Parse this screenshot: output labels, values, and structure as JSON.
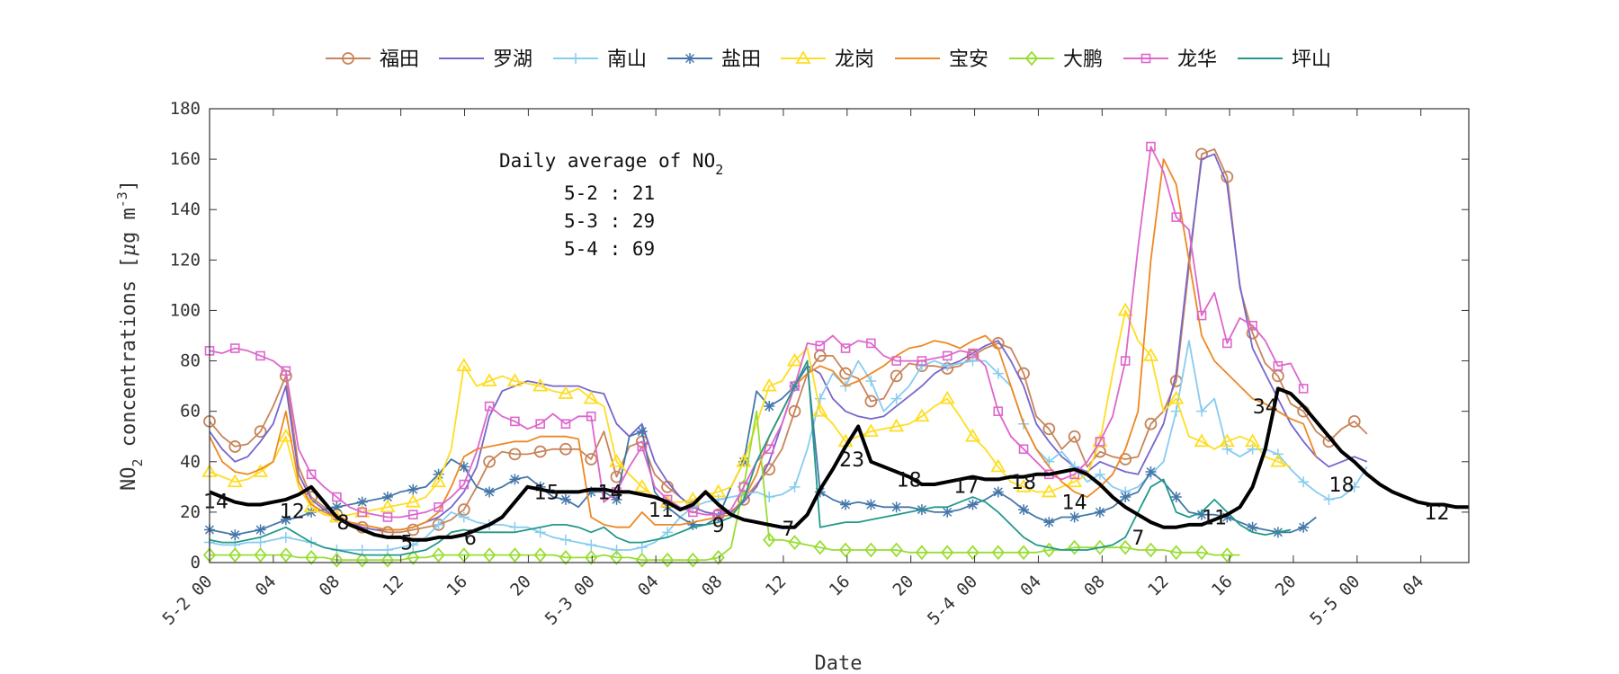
{
  "chart_data": {
    "type": "line",
    "xlabel": "Date",
    "ylabel_parts": [
      "NO",
      "2",
      " concentrations [",
      "μ",
      "g m",
      "-3",
      "]"
    ],
    "ylim": [
      0,
      180
    ],
    "yticks": [
      0,
      20,
      40,
      60,
      80,
      100,
      120,
      140,
      160,
      180
    ],
    "xlim": [
      0,
      71
    ],
    "xticks": [
      {
        "x": 0,
        "label": "5-2 00"
      },
      {
        "x": 4,
        "label": "04"
      },
      {
        "x": 8,
        "label": "08"
      },
      {
        "x": 12,
        "label": "12"
      },
      {
        "x": 16,
        "label": "16"
      },
      {
        "x": 20,
        "label": "20"
      },
      {
        "x": 24,
        "label": "5-3 00"
      },
      {
        "x": 28,
        "label": "04"
      },
      {
        "x": 32,
        "label": "08"
      },
      {
        "x": 36,
        "label": "12"
      },
      {
        "x": 40,
        "label": "16"
      },
      {
        "x": 44,
        "label": "20"
      },
      {
        "x": 48,
        "label": "5-4 00"
      },
      {
        "x": 52,
        "label": "04"
      },
      {
        "x": 56,
        "label": "08"
      },
      {
        "x": 60,
        "label": "12"
      },
      {
        "x": 64,
        "label": "16"
      },
      {
        "x": 68,
        "label": "20"
      },
      {
        "x": 72,
        "label": "5-5 00"
      },
      {
        "x": 76,
        "label": "04"
      }
    ],
    "grid": false,
    "legend_position": "top",
    "annotation": {
      "title_main": "Daily average of NO",
      "title_sub": "2",
      "lines": [
        "5-2 : 21",
        "5-3 : 29",
        "5-4 : 69"
      ]
    },
    "average": {
      "name": "average",
      "color": "#000000",
      "values": [
        28,
        26,
        24,
        23,
        23,
        24,
        25,
        27,
        30,
        24,
        18,
        15,
        13,
        11,
        10,
        10,
        9,
        9,
        10,
        10,
        11,
        13,
        15,
        18,
        24,
        30,
        29,
        28,
        28,
        28,
        29,
        29,
        28,
        28,
        27,
        26,
        24,
        21,
        23,
        28,
        23,
        19,
        17,
        16,
        15,
        14,
        14,
        19,
        29,
        37,
        46,
        54,
        40,
        38,
        36,
        34,
        31,
        31,
        32,
        33,
        34,
        33,
        33,
        34,
        34,
        35,
        35,
        36,
        37,
        35,
        31,
        26,
        22,
        19,
        16,
        14,
        14,
        15,
        15,
        17,
        19,
        22,
        30,
        45,
        69,
        67,
        62,
        56,
        50,
        44,
        40,
        35,
        31,
        28,
        26,
        24,
        23,
        23,
        22,
        22
      ]
    },
    "average_labels": [
      {
        "x": 0.5,
        "y": 24.5,
        "label": "14"
      },
      {
        "x": 6.5,
        "y": 20.5,
        "label": "12"
      },
      {
        "x": 10.5,
        "y": 16,
        "label": "8"
      },
      {
        "x": 15.5,
        "y": 8,
        "label": "5"
      },
      {
        "x": 20.5,
        "y": 10,
        "label": "6"
      },
      {
        "x": 26.5,
        "y": 28,
        "label": "15"
      },
      {
        "x": 31.5,
        "y": 28,
        "label": "14"
      },
      {
        "x": 35.5,
        "y": 21,
        "label": "11"
      },
      {
        "x": 40,
        "y": 15,
        "label": "9"
      },
      {
        "x": 45.5,
        "y": 13.5,
        "label": "7"
      },
      {
        "x": 50.5,
        "y": 41,
        "label": "23"
      },
      {
        "x": 55,
        "y": 33,
        "label": "18"
      },
      {
        "x": 59.5,
        "y": 30.5,
        "label": "17"
      },
      {
        "x": 64,
        "y": 32,
        "label": "18"
      },
      {
        "x": 68,
        "y": 24,
        "label": "14"
      },
      {
        "x": 73,
        "y": 10,
        "label": "7"
      },
      {
        "x": 79,
        "y": 18,
        "label": "11"
      },
      {
        "x": 83,
        "y": 62,
        "label": "34"
      },
      {
        "x": 89,
        "y": 31,
        "label": "18"
      },
      {
        "x": 96.5,
        "y": 20,
        "label": "12"
      }
    ],
    "series": [
      {
        "name": "福田",
        "color": "#c8845a",
        "marker": "circle",
        "values": [
          56,
          50,
          46,
          47,
          52,
          62,
          74,
          38,
          26,
          22,
          19,
          16,
          14,
          13,
          12,
          12,
          13,
          14,
          15,
          17,
          21,
          30,
          40,
          44,
          43,
          43,
          44,
          45,
          45,
          45,
          41,
          52,
          34,
          46,
          48,
          35,
          30,
          26,
          22,
          20,
          19,
          20,
          25,
          31,
          37,
          45,
          60,
          75,
          82,
          82,
          75,
          73,
          64,
          65,
          74,
          79,
          78,
          78,
          77,
          78,
          82,
          85,
          87,
          85,
          75,
          58,
          53,
          45,
          50,
          38,
          44,
          42,
          41,
          42,
          55,
          60,
          72,
          117,
          162,
          164,
          153,
          109,
          91,
          79,
          74,
          63,
          60,
          52,
          48,
          53,
          56,
          51
        ]
      },
      {
        "name": "罗湖",
        "color": "#7766cc",
        "marker": "none",
        "values": [
          52,
          45,
          40,
          42,
          48,
          55,
          70,
          35,
          25,
          21,
          18,
          16,
          14,
          13,
          13,
          13,
          14,
          16,
          18,
          22,
          28,
          38,
          58,
          68,
          70,
          72,
          71,
          70,
          70,
          70,
          68,
          67,
          55,
          50,
          55,
          40,
          32,
          26,
          22,
          20,
          19,
          20,
          24,
          30,
          40,
          55,
          70,
          78,
          75,
          65,
          60,
          58,
          57,
          58,
          62,
          66,
          70,
          75,
          78,
          80,
          83,
          86,
          88,
          80,
          70,
          55,
          48,
          42,
          38,
          36,
          40,
          38,
          36,
          35,
          45,
          55,
          75,
          120,
          160,
          162,
          150,
          110,
          85,
          75,
          65,
          55,
          48,
          42,
          38,
          40,
          42,
          40
        ]
      },
      {
        "name": "南山",
        "color": "#88ccee",
        "marker": "plus",
        "values": [
          8,
          7,
          7,
          8,
          8,
          9,
          10,
          9,
          8,
          6,
          5,
          5,
          5,
          5,
          5,
          6,
          7,
          10,
          15,
          20,
          18,
          16,
          15,
          15,
          14,
          14,
          12,
          10,
          9,
          8,
          7,
          6,
          5,
          5,
          6,
          8,
          12,
          18,
          22,
          24,
          25,
          26,
          27,
          28,
          26,
          27,
          30,
          45,
          65,
          75,
          70,
          80,
          72,
          60,
          65,
          70,
          78,
          80,
          78,
          79,
          80,
          80,
          75,
          70,
          55,
          45,
          40,
          44,
          38,
          32,
          35,
          30,
          28,
          30,
          35,
          40,
          60,
          88,
          60,
          65,
          45,
          42,
          45,
          45,
          43,
          37,
          32,
          28,
          25,
          26,
          30,
          38
        ]
      },
      {
        "name": "盐田",
        "color": "#4477aa",
        "marker": "asterisk",
        "values": [
          13,
          12,
          11,
          12,
          13,
          15,
          17,
          18,
          20,
          21,
          22,
          23,
          24,
          25,
          26,
          28,
          29,
          30,
          35,
          41,
          38,
          30,
          28,
          30,
          33,
          34,
          30,
          26,
          25,
          22,
          28,
          28,
          25,
          50,
          52,
          28,
          22,
          18,
          15,
          15,
          18,
          30,
          40,
          68,
          62,
          65,
          70,
          78,
          28,
          25,
          23,
          24,
          23,
          22,
          22,
          22,
          21,
          20,
          20,
          21,
          23,
          25,
          28,
          25,
          21,
          18,
          16,
          18,
          18,
          19,
          20,
          22,
          26,
          28,
          36,
          32,
          26,
          20,
          19,
          19,
          18,
          16,
          14,
          13,
          12,
          12,
          14,
          18
        ]
      },
      {
        "name": "龙岗",
        "color": "#ffdd22",
        "marker": "triangle",
        "values": [
          36,
          34,
          32,
          33,
          36,
          40,
          50,
          30,
          22,
          19,
          18,
          19,
          20,
          21,
          22,
          23,
          24,
          26,
          32,
          45,
          78,
          70,
          72,
          74,
          72,
          71,
          70,
          68,
          67,
          69,
          65,
          62,
          40,
          35,
          30,
          26,
          24,
          24,
          25,
          27,
          28,
          30,
          40,
          55,
          70,
          72,
          80,
          85,
          60,
          55,
          48,
          50,
          52,
          53,
          54,
          55,
          58,
          62,
          65,
          58,
          50,
          45,
          38,
          32,
          30,
          28,
          28,
          30,
          32,
          35,
          48,
          75,
          100,
          88,
          82,
          60,
          65,
          50,
          48,
          45,
          48,
          50,
          48,
          42,
          40,
          38
        ]
      },
      {
        "name": "宝安",
        "color": "#ee8822",
        "marker": "none",
        "values": [
          50,
          40,
          36,
          35,
          37,
          40,
          60,
          32,
          23,
          20,
          18,
          16,
          15,
          14,
          13,
          13,
          14,
          16,
          20,
          30,
          42,
          45,
          46,
          47,
          48,
          48,
          50,
          50,
          50,
          49,
          18,
          15,
          14,
          14,
          20,
          15,
          15,
          15,
          16,
          17,
          18,
          19,
          25,
          35,
          50,
          60,
          70,
          75,
          78,
          76,
          70,
          72,
          75,
          78,
          82,
          85,
          86,
          88,
          87,
          85,
          88,
          90,
          85,
          70,
          55,
          45,
          38,
          32,
          28,
          26,
          30,
          35,
          45,
          60,
          120,
          160,
          150,
          120,
          90,
          80,
          75,
          70,
          65,
          63,
          60,
          57,
          55,
          42
        ]
      },
      {
        "name": "大鹏",
        "color": "#99dd33",
        "marker": "diamond",
        "values": [
          3,
          3,
          3,
          3,
          3,
          3,
          3,
          2,
          2,
          2,
          1,
          1,
          1,
          1,
          1,
          1,
          2,
          2,
          3,
          3,
          3,
          3,
          3,
          3,
          3,
          3,
          3,
          3,
          2,
          2,
          2,
          3,
          2,
          2,
          1,
          1,
          1,
          1,
          1,
          1,
          2,
          6,
          30,
          60,
          9,
          9,
          8,
          7,
          6,
          5,
          5,
          5,
          5,
          5,
          5,
          4,
          4,
          4,
          4,
          4,
          4,
          4,
          4,
          4,
          4,
          4,
          5,
          5,
          6,
          6,
          6,
          6,
          6,
          5,
          5,
          5,
          4,
          4,
          4,
          3,
          3,
          3
        ]
      },
      {
        "name": "龙华",
        "color": "#dd66cc",
        "marker": "square",
        "values": [
          84,
          83,
          85,
          84,
          82,
          80,
          76,
          45,
          35,
          30,
          26,
          22,
          20,
          19,
          18,
          18,
          19,
          20,
          22,
          26,
          31,
          44,
          62,
          58,
          56,
          53,
          55,
          59,
          55,
          58,
          58,
          24,
          28,
          38,
          46,
          30,
          25,
          22,
          20,
          19,
          19,
          21,
          30,
          40,
          45,
          55,
          70,
          87,
          86,
          90,
          85,
          88,
          87,
          82,
          80,
          80,
          80,
          81,
          82,
          84,
          83,
          78,
          60,
          50,
          45,
          40,
          35,
          33,
          35,
          40,
          48,
          58,
          80,
          125,
          165,
          155,
          137,
          132,
          98,
          107,
          87,
          97,
          94,
          88,
          78,
          79,
          69
        ]
      },
      {
        "name": "坪山",
        "color": "#229988",
        "marker": "none",
        "values": [
          9,
          8,
          8,
          9,
          10,
          12,
          14,
          11,
          8,
          6,
          5,
          4,
          3,
          3,
          3,
          3,
          4,
          5,
          8,
          12,
          13,
          12,
          12,
          12,
          12,
          13,
          14,
          15,
          15,
          14,
          12,
          14,
          10,
          8,
          8,
          9,
          10,
          12,
          14,
          15,
          16,
          18,
          25,
          40,
          50,
          60,
          70,
          80,
          14,
          15,
          16,
          16,
          17,
          18,
          19,
          20,
          21,
          22,
          22,
          24,
          26,
          24,
          20,
          15,
          10,
          7,
          6,
          5,
          5,
          5,
          6,
          7,
          10,
          20,
          30,
          33,
          20,
          18,
          20,
          25,
          20,
          15,
          12,
          11,
          12,
          13
        ]
      }
    ]
  }
}
